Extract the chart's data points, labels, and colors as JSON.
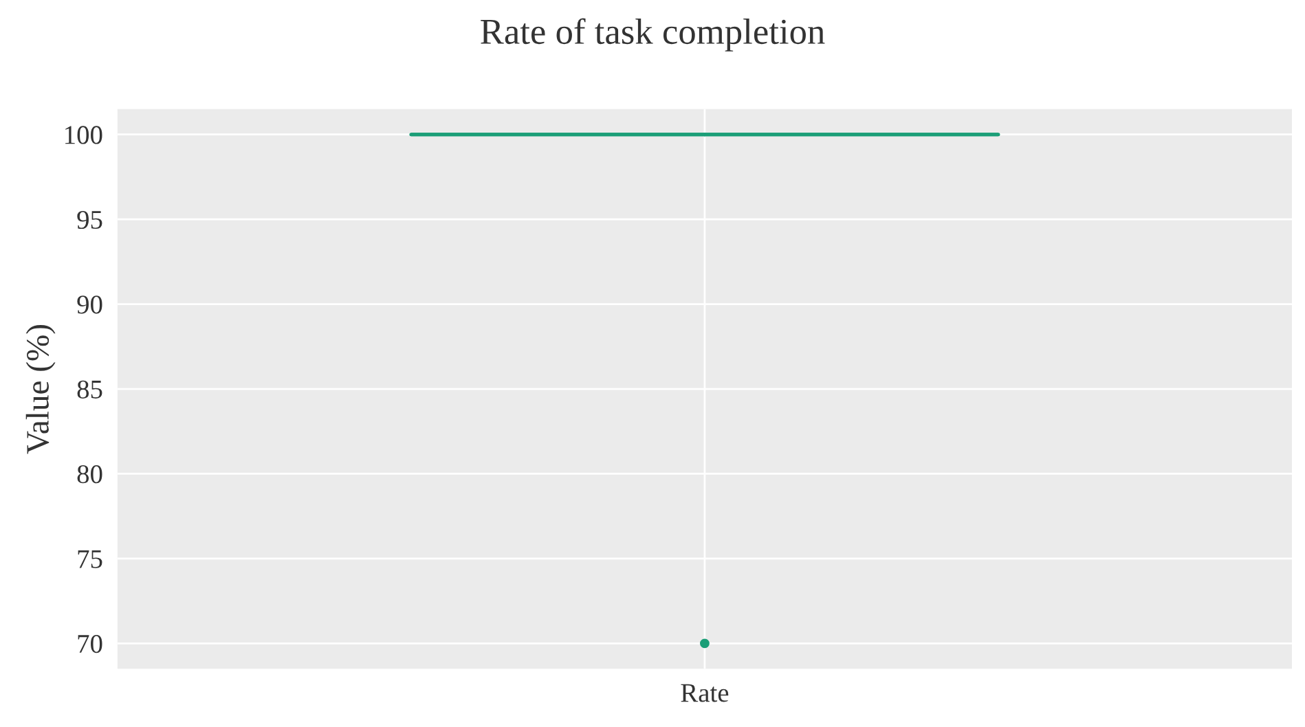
{
  "chart_data": {
    "type": "box",
    "title": "Rate of task completion",
    "ylabel": "Value (%)",
    "categories": [
      "Rate"
    ],
    "series": [
      {
        "color": "#1b9e77",
        "boxes": [
          {
            "low": 100,
            "q1": 100,
            "median": 100,
            "q3": 100,
            "high": 100,
            "outliers": [
              70
            ]
          }
        ]
      }
    ],
    "ylim": [
      68.5,
      101.5
    ],
    "yticks": [
      70,
      75,
      80,
      85,
      90,
      95,
      100
    ],
    "grid": true,
    "legend": false
  }
}
